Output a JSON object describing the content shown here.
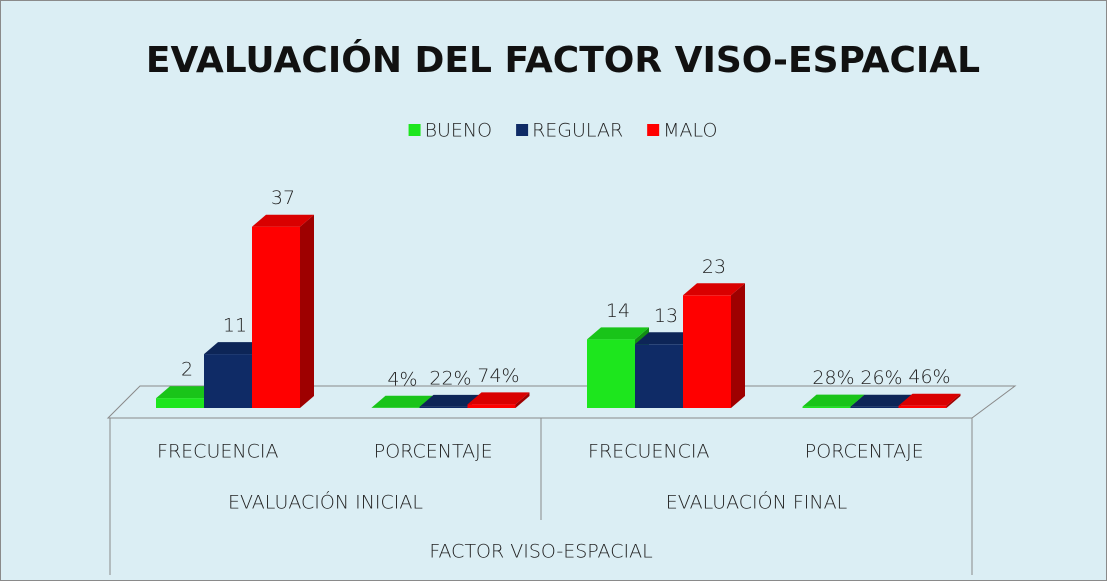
{
  "chart_data": {
    "type": "bar3d",
    "title": "EVALUACIÓN DEL FACTOR VISO-ESPACIAL",
    "categories": [
      "FRECUENCIA",
      "PORCENTAJE",
      "FRECUENCIA",
      "PORCENTAJE"
    ],
    "category_groups": [
      "EVALUACIÓN INICIAL",
      "EVALUACIÓN FINAL"
    ],
    "category_super_group": "FACTOR VISO-ESPACIAL",
    "series": [
      {
        "name": "BUENO",
        "color": "#1de61d",
        "values": [
          2,
          0.04,
          14,
          0.28
        ],
        "value_labels": [
          "2",
          "4%",
          "14",
          "28%"
        ]
      },
      {
        "name": "REGULAR",
        "color": "#0f2b66",
        "values": [
          11,
          0.22,
          13,
          0.26
        ],
        "value_labels": [
          "11",
          "22%",
          "13",
          "26%"
        ]
      },
      {
        "name": "MALO",
        "color": "#ff0000",
        "values": [
          37,
          0.74,
          23,
          0.46
        ],
        "value_labels": [
          "37",
          "74%",
          "23",
          "46%"
        ]
      }
    ],
    "ylim": [
      0,
      40
    ]
  }
}
